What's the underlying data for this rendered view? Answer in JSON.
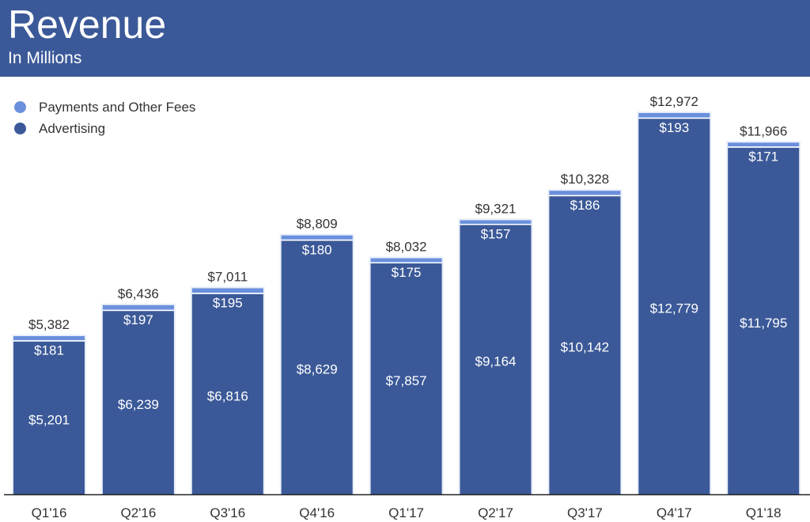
{
  "header": {
    "title": "Revenue",
    "subtitle": "In Millions"
  },
  "colors": {
    "header": "#3b5998",
    "advertising": "#3b5998",
    "payments": "#6a8fdc"
  },
  "chart_data": {
    "type": "bar",
    "stacked": true,
    "title": "Revenue",
    "subtitle": "In Millions",
    "categories": [
      "Q1'16",
      "Q2'16",
      "Q3'16",
      "Q4'16",
      "Q1'17",
      "Q2'17",
      "Q3'17",
      "Q4'17",
      "Q1'18"
    ],
    "series": [
      {
        "name": "Advertising",
        "values": [
          5201,
          6239,
          6816,
          8629,
          7857,
          9164,
          10142,
          12779,
          11795
        ],
        "labels": [
          "$5,201",
          "$6,239",
          "$6,816",
          "$8,629",
          "$7,857",
          "$9,164",
          "$10,142",
          "$12,779",
          "$11,795"
        ]
      },
      {
        "name": "Payments and Other Fees",
        "values": [
          181,
          197,
          195,
          180,
          175,
          157,
          186,
          193,
          171
        ],
        "labels": [
          "$181",
          "$197",
          "$195",
          "$180",
          "$175",
          "$157",
          "$186",
          "$193",
          "$171"
        ]
      }
    ],
    "totals": [
      5382,
      6436,
      7011,
      8809,
      8032,
      9321,
      10328,
      12972,
      11966
    ],
    "total_labels": [
      "$5,382",
      "$6,436",
      "$7,011",
      "$8,809",
      "$8,032",
      "$9,321",
      "$10,328",
      "$12,972",
      "$11,966"
    ],
    "legend": [
      "Payments and Other Fees",
      "Advertising"
    ],
    "legend_placement": "top-left",
    "grid": false,
    "ylim": [
      0,
      13000
    ]
  }
}
